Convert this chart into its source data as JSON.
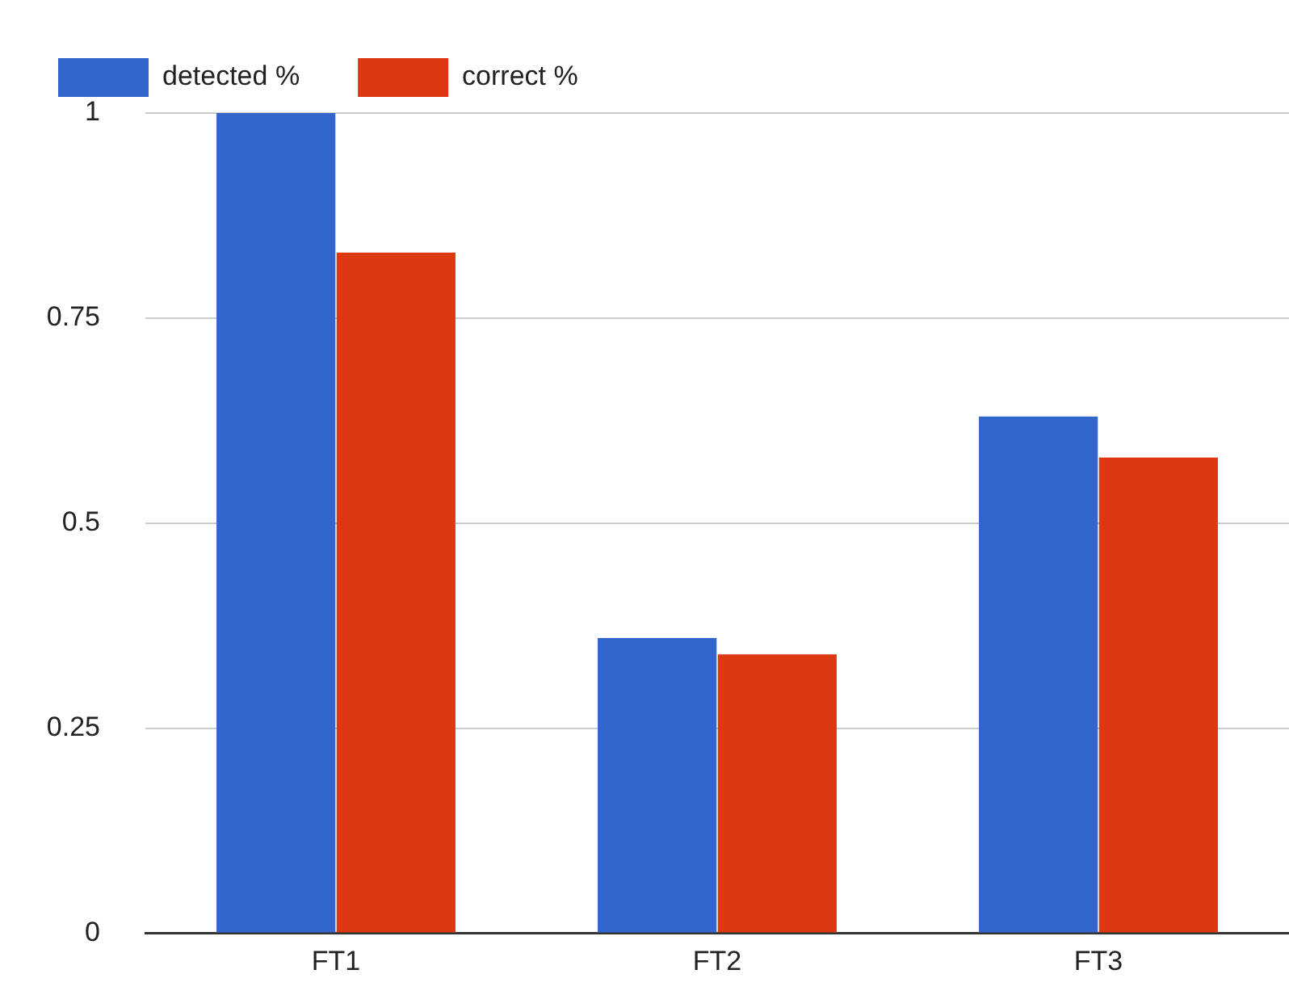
{
  "chart_data": {
    "type": "bar",
    "categories": [
      "FT1",
      "FT2",
      "FT3"
    ],
    "series": [
      {
        "name": "detected %",
        "color": "#3366cc",
        "values": [
          1.0,
          0.36,
          0.63
        ]
      },
      {
        "name": "correct %",
        "color": "#dc3912",
        "values": [
          0.83,
          0.34,
          0.58
        ]
      }
    ],
    "ylim": [
      0,
      1
    ],
    "yticks": [
      0,
      0.25,
      0.5,
      0.75,
      1
    ],
    "grid": "y",
    "legend": "top left"
  }
}
